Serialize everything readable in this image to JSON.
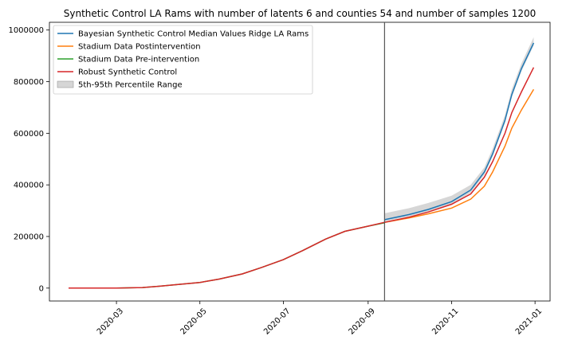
{
  "chart_data": {
    "type": "line",
    "title": "Synthetic Control LA Rams with number of latents 6 and counties 54 and number of samples 1200",
    "xlabel": "",
    "ylabel": "",
    "xlim": [
      "2020-01-12",
      "2021-01-12"
    ],
    "ylim": [
      -50000,
      1030000
    ],
    "x_ticks": [
      "2020-03",
      "2020-05",
      "2020-07",
      "2020-09",
      "2020-11",
      "2021-01"
    ],
    "y_ticks": [
      0,
      200000,
      400000,
      600000,
      800000,
      1000000
    ],
    "y_tick_labels": [
      "0",
      "200000",
      "400000",
      "600000",
      "800000",
      "1000000"
    ],
    "intervention_date": "2020-09-13",
    "legend_position": "upper-left",
    "grid": false,
    "series": [
      {
        "name": "Bayesian Synthetic Control Median Values Ridge LA Rams",
        "color": "#1f77b4",
        "x": [
          "2020-09-13",
          "2020-10-01",
          "2020-10-15",
          "2020-11-01",
          "2020-11-15",
          "2020-11-25",
          "2020-12-01",
          "2020-12-10",
          "2020-12-15",
          "2020-12-22",
          "2020-12-31"
        ],
        "y": [
          265000,
          285000,
          305000,
          335000,
          380000,
          450000,
          520000,
          650000,
          750000,
          850000,
          950000
        ]
      },
      {
        "name": "Stadium Data Postintervention",
        "color": "#ff7f0e",
        "x": [
          "2020-09-13",
          "2020-10-01",
          "2020-10-15",
          "2020-11-01",
          "2020-11-15",
          "2020-11-25",
          "2020-12-01",
          "2020-12-10",
          "2020-12-15",
          "2020-12-22",
          "2020-12-31"
        ],
        "y": [
          255000,
          272000,
          288000,
          310000,
          345000,
          395000,
          450000,
          550000,
          620000,
          690000,
          770000
        ]
      },
      {
        "name": "Stadium Data Pre-intervention",
        "color": "#2ca02c",
        "x": [
          "2020-01-26",
          "2020-03-01",
          "2020-03-20",
          "2020-04-01",
          "2020-04-15",
          "2020-05-01",
          "2020-05-15",
          "2020-06-01",
          "2020-06-15",
          "2020-07-01",
          "2020-07-15",
          "2020-08-01",
          "2020-08-15",
          "2020-09-01",
          "2020-09-13"
        ],
        "y": [
          0,
          0,
          2000,
          7000,
          14000,
          22000,
          35000,
          55000,
          80000,
          110000,
          145000,
          190000,
          220000,
          240000,
          253000
        ]
      },
      {
        "name": "Robust Synthetic Control",
        "color": "#d62728",
        "x": [
          "2020-01-26",
          "2020-03-01",
          "2020-03-20",
          "2020-04-01",
          "2020-04-15",
          "2020-05-01",
          "2020-05-15",
          "2020-06-01",
          "2020-06-15",
          "2020-07-01",
          "2020-07-15",
          "2020-08-01",
          "2020-08-15",
          "2020-09-01",
          "2020-09-13",
          "2020-10-01",
          "2020-10-15",
          "2020-11-01",
          "2020-11-15",
          "2020-11-25",
          "2020-12-01",
          "2020-12-10",
          "2020-12-15",
          "2020-12-22",
          "2020-12-31"
        ],
        "y": [
          0,
          0,
          2000,
          7000,
          14000,
          22000,
          35000,
          55000,
          80000,
          110000,
          145000,
          190000,
          220000,
          240000,
          255000,
          275000,
          295000,
          325000,
          365000,
          430000,
          490000,
          600000,
          680000,
          760000,
          855000
        ]
      }
    ],
    "band": {
      "name": "5th-95th Percentile Range",
      "color": "#bbbbbb",
      "x": [
        "2020-09-13",
        "2020-10-01",
        "2020-10-15",
        "2020-11-01",
        "2020-11-15",
        "2020-11-25",
        "2020-12-01",
        "2020-12-10",
        "2020-12-15",
        "2020-12-22",
        "2020-12-31"
      ],
      "lower": [
        258000,
        278000,
        298000,
        325000,
        370000,
        440000,
        510000,
        640000,
        740000,
        840000,
        940000
      ],
      "upper": [
        290000,
        310000,
        330000,
        358000,
        400000,
        468000,
        540000,
        670000,
        770000,
        870000,
        972000
      ]
    }
  }
}
